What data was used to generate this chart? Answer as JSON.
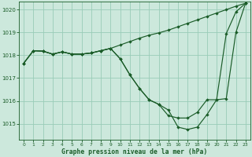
{
  "title": "Graphe pression niveau de la mer (hPa)",
  "bg_color": "#cce8dc",
  "grid_color": "#99ccb8",
  "line_color": "#1a5c28",
  "xlim": [
    -0.5,
    23.5
  ],
  "ylim": [
    1014.3,
    1020.35
  ],
  "yticks": [
    1015,
    1016,
    1017,
    1018,
    1019,
    1020
  ],
  "xticks": [
    0,
    1,
    2,
    3,
    4,
    5,
    6,
    7,
    8,
    9,
    10,
    11,
    12,
    13,
    14,
    15,
    16,
    17,
    18,
    19,
    20,
    21,
    22,
    23
  ],
  "series1_y": [
    1017.65,
    1018.2,
    1018.18,
    1018.05,
    1018.15,
    1018.05,
    1018.05,
    1018.1,
    1018.2,
    1018.3,
    1018.45,
    1018.6,
    1018.75,
    1018.88,
    1018.98,
    1019.1,
    1019.25,
    1019.4,
    1019.55,
    1019.7,
    1019.85,
    1020.0,
    1020.15,
    1020.28
  ],
  "series2_y": [
    1017.65,
    1018.2,
    1018.18,
    1018.05,
    1018.15,
    1018.05,
    1018.05,
    1018.1,
    1018.2,
    1018.3,
    1017.85,
    1017.15,
    1016.55,
    1016.05,
    1015.85,
    1015.6,
    1014.85,
    1014.75,
    1014.85,
    1015.4,
    1016.05,
    1018.95,
    1019.9,
    1020.28
  ],
  "series3_y": [
    1017.65,
    1018.2,
    1018.18,
    1018.05,
    1018.15,
    1018.05,
    1018.05,
    1018.1,
    1018.2,
    1018.3,
    1017.85,
    1017.15,
    1016.55,
    1016.05,
    1015.85,
    1015.35,
    1015.25,
    1015.25,
    1015.5,
    1016.05,
    1016.05,
    1016.1,
    1019.0,
    1020.28
  ],
  "figsize": [
    3.2,
    2.0
  ],
  "dpi": 100
}
